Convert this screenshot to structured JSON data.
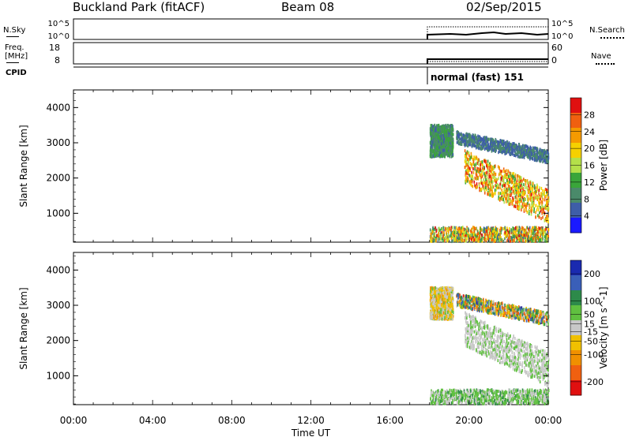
{
  "header": {
    "station": "Buckland Park (fitACF)",
    "beam": "Beam 08",
    "date": "02/Sep/2015"
  },
  "panels": {
    "nsky": {
      "label": "N.Sky",
      "right_label": "N.Search",
      "left_ticks": [
        "10^5",
        "10^0"
      ],
      "right_ticks": [
        "10^5",
        "10^0"
      ]
    },
    "freq": {
      "label": "Freq.",
      "units": "[MHz]",
      "right_label": "Nave",
      "left_ticks": [
        "18",
        "8"
      ],
      "right_ticks": [
        "60",
        "0"
      ]
    },
    "cpid": {
      "label": "CPID",
      "mode": "normal (fast) 151"
    }
  },
  "colors": {
    "power_scale": [
      "#1a1aff",
      "#3e5ea8",
      "#4a8a6a",
      "#3aa53a",
      "#b4e04a",
      "#f5d000",
      "#f59a00",
      "#f06010",
      "#e01010"
    ],
    "velocity_scale": [
      "#1a2ab0",
      "#3a5fb8",
      "#2d8a4a",
      "#60c040",
      "#c8c8c8",
      "#f0c000",
      "#f09000",
      "#f06010",
      "#e01010"
    ]
  },
  "chart_data": [
    {
      "type": "heatmap",
      "name": "power",
      "ylabel": "Slant Range [km]",
      "xlabel": "",
      "xticks": [
        "00:00",
        "04:00",
        "08:00",
        "12:00",
        "16:00",
        "20:00",
        "00:00"
      ],
      "yticks": [
        1000,
        2000,
        3000,
        4000
      ],
      "ylim": [
        180,
        4500
      ],
      "colorbar": {
        "label": "Power [dB]",
        "ticks": [
          4,
          8,
          12,
          16,
          20,
          24,
          28
        ],
        "range": [
          0,
          32
        ]
      },
      "data_start": "18:00",
      "regions": [
        {
          "feature": "near-range ground clutter",
          "start": "18:00",
          "end": "24:00",
          "range_km": [
            200,
            600
          ],
          "power_db": [
            6,
            30
          ]
        },
        {
          "feature": "early echo patch",
          "start": "18:00",
          "end": "19:10",
          "range_km": [
            2600,
            3500
          ],
          "power_db": [
            6,
            14
          ]
        },
        {
          "feature": "upper diagonal band",
          "start": "19:20",
          "end": "24:00",
          "range_km": [
            2500,
            3200
          ],
          "power_db": [
            4,
            10
          ]
        },
        {
          "feature": "main descending echo band",
          "start": "19:45",
          "end": "24:00",
          "range_km": [
            900,
            2500
          ],
          "power_db": [
            12,
            30
          ]
        }
      ]
    },
    {
      "type": "heatmap",
      "name": "velocity",
      "ylabel": "Slant Range [km]",
      "xlabel": "Time UT",
      "xticks": [
        "00:00",
        "04:00",
        "08:00",
        "12:00",
        "16:00",
        "20:00",
        "00:00"
      ],
      "yticks": [
        1000,
        2000,
        3000,
        4000
      ],
      "ylim": [
        180,
        4500
      ],
      "colorbar": {
        "label": "Velocity [m s^-1]",
        "ticks": [
          200,
          100,
          50,
          15,
          -15,
          -50,
          -100,
          -200
        ],
        "range": [
          -250,
          250
        ]
      },
      "data_start": "18:00",
      "regions": [
        {
          "feature": "near-range ground clutter",
          "start": "18:00",
          "end": "24:00",
          "range_km": [
            200,
            600
          ],
          "velocity": [
            -15,
            100
          ]
        },
        {
          "feature": "early echo patch",
          "start": "18:00",
          "end": "19:10",
          "range_km": [
            2600,
            3500
          ],
          "velocity": [
            -100,
            50
          ]
        },
        {
          "feature": "upper diagonal band",
          "start": "19:20",
          "end": "24:00",
          "range_km": [
            2500,
            3200
          ],
          "velocity": [
            -200,
            200
          ]
        },
        {
          "feature": "main descending echo band",
          "start": "19:45",
          "end": "24:00",
          "range_km": [
            900,
            2500
          ],
          "velocity": [
            -15,
            50
          ]
        }
      ]
    }
  ]
}
